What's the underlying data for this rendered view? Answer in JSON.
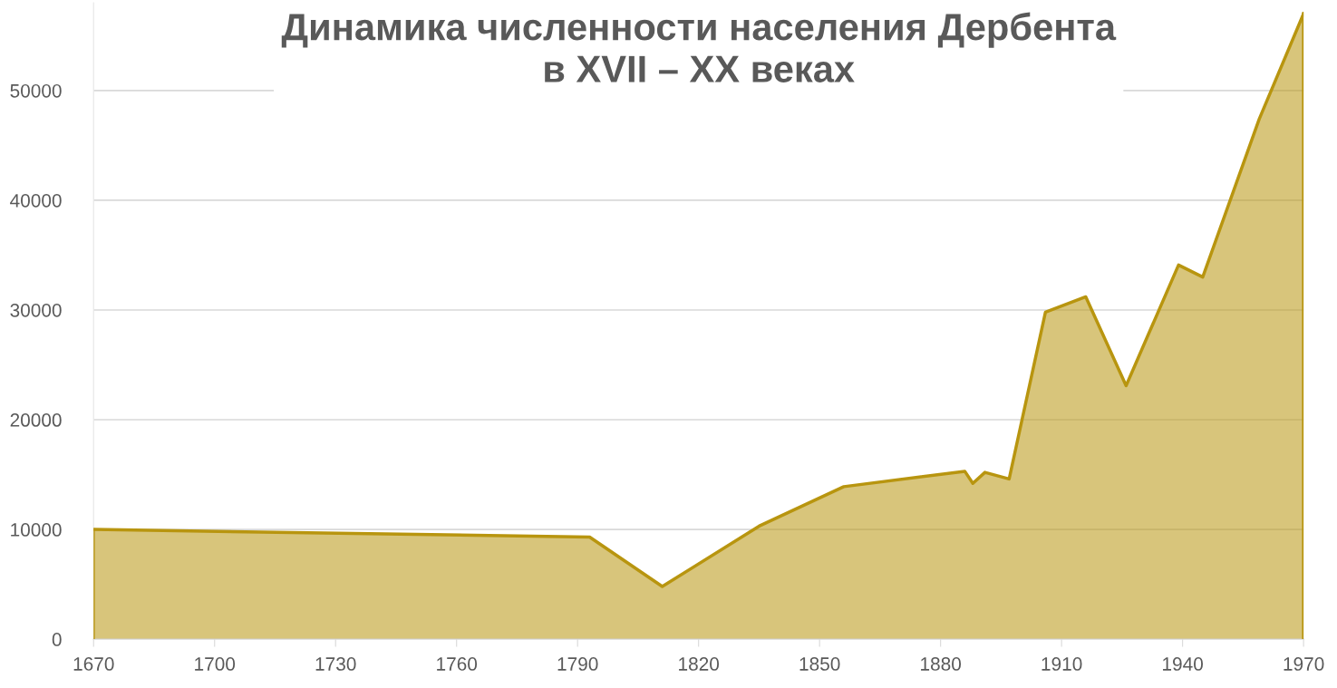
{
  "chart_data": {
    "type": "area",
    "title": "Динамика численности населения Дербента\nв XVII – XX веках",
    "x": [
      1670,
      1793,
      1811,
      1835,
      1856,
      1886,
      1888,
      1891,
      1897,
      1906,
      1916,
      1926,
      1939,
      1945,
      1959,
      1970
    ],
    "series": [
      {
        "color": "#b8950f",
        "values": [
          10000,
          9300,
          4800,
          10300,
          13900,
          15300,
          14200,
          15200,
          14600,
          29800,
          31200,
          23100,
          34100,
          33000,
          47400,
          57000
        ]
      }
    ],
    "xlim": [
      1670,
      1970
    ],
    "xticks": [
      1670,
      1700,
      1730,
      1760,
      1790,
      1820,
      1850,
      1880,
      1910,
      1940,
      1970
    ],
    "ylim": [
      0,
      58000
    ],
    "yticks": [
      0,
      10000,
      20000,
      30000,
      40000,
      50000
    ],
    "grid": "y",
    "legend": false
  }
}
